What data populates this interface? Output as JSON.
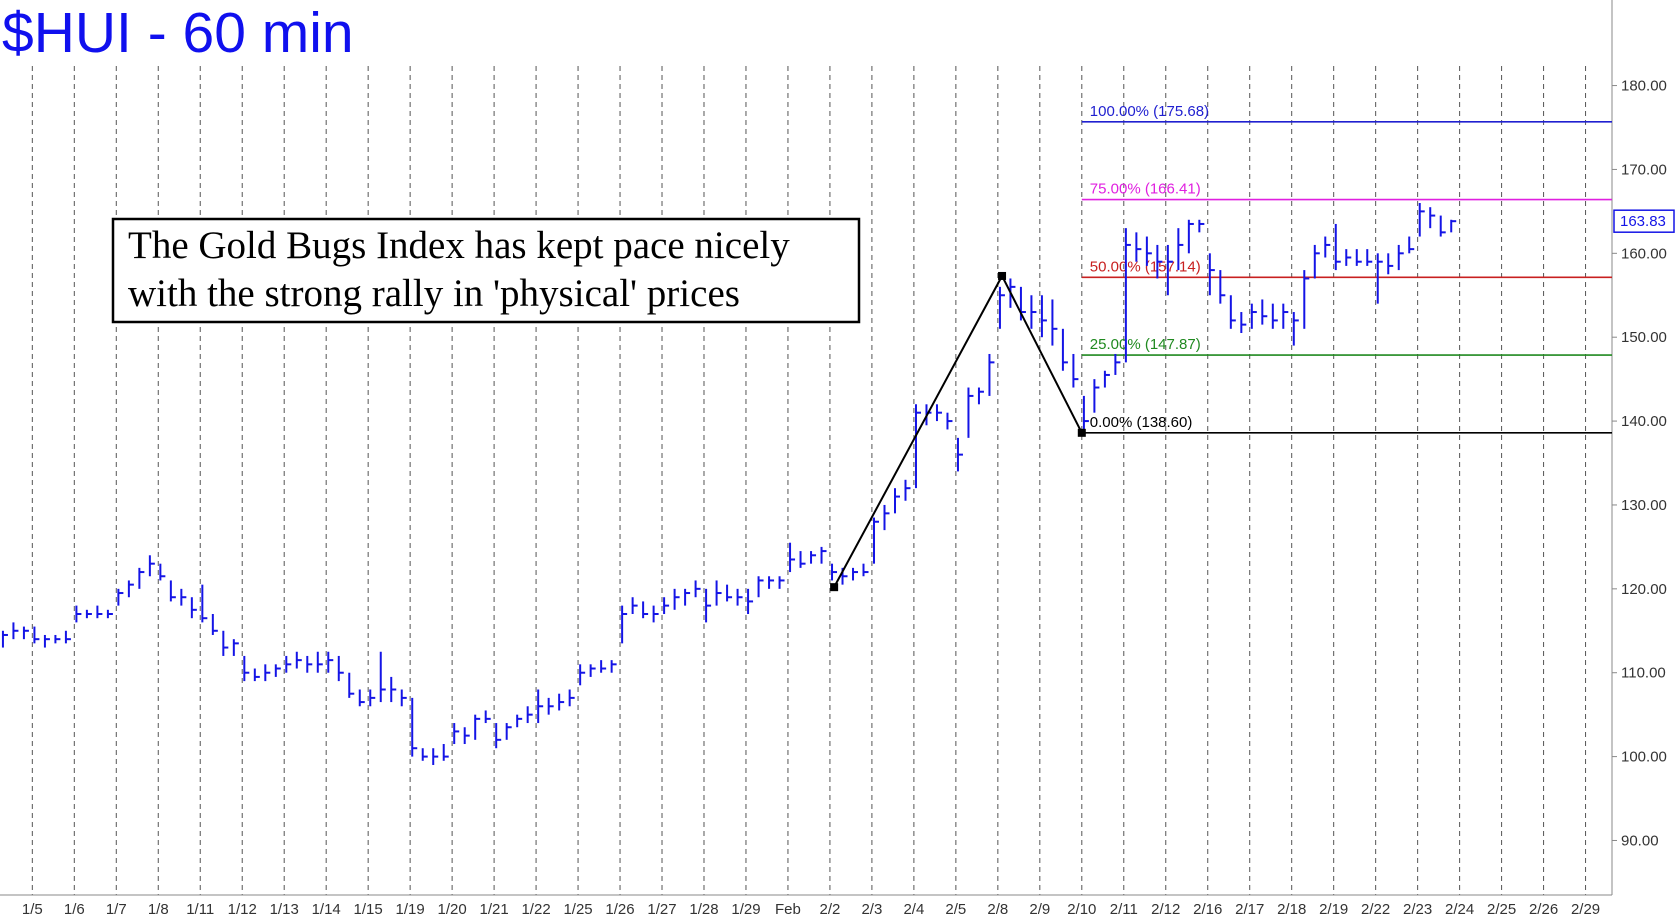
{
  "chart_data": {
    "type": "ohlc",
    "title": "$HUI - 60 min",
    "annotation": [
      "The Gold Bugs Index has kept pace nicely",
      "with the strong rally in 'physical' prices"
    ],
    "color": "#1414e6",
    "grid": true,
    "xlim": [
      -0.77,
      37.63
    ],
    "ylim": [
      83.5,
      190.2
    ],
    "xticks": [
      {
        "value": 0,
        "label": "1/5"
      },
      {
        "value": 1,
        "label": "1/6"
      },
      {
        "value": 2,
        "label": "1/7"
      },
      {
        "value": 3,
        "label": "1/8"
      },
      {
        "value": 4,
        "label": "1/11"
      },
      {
        "value": 5,
        "label": "1/12"
      },
      {
        "value": 6,
        "label": "1/13"
      },
      {
        "value": 7,
        "label": "1/14"
      },
      {
        "value": 8,
        "label": "1/15"
      },
      {
        "value": 9,
        "label": "1/19"
      },
      {
        "value": 10,
        "label": "1/20"
      },
      {
        "value": 11,
        "label": "1/21"
      },
      {
        "value": 12,
        "label": "1/22"
      },
      {
        "value": 13,
        "label": "1/25"
      },
      {
        "value": 14,
        "label": "1/26"
      },
      {
        "value": 15,
        "label": "1/27"
      },
      {
        "value": 16,
        "label": "1/28"
      },
      {
        "value": 17,
        "label": "1/29"
      },
      {
        "value": 18,
        "label": "Feb"
      },
      {
        "value": 19,
        "label": "2/2"
      },
      {
        "value": 20,
        "label": "2/3"
      },
      {
        "value": 21,
        "label": "2/4"
      },
      {
        "value": 22,
        "label": "2/5"
      },
      {
        "value": 23,
        "label": "2/8"
      },
      {
        "value": 24,
        "label": "2/9"
      },
      {
        "value": 25,
        "label": "2/10"
      },
      {
        "value": 26,
        "label": "2/11"
      },
      {
        "value": 27,
        "label": "2/12"
      },
      {
        "value": 28,
        "label": "2/16"
      },
      {
        "value": 29,
        "label": "2/17"
      },
      {
        "value": 30,
        "label": "2/18"
      },
      {
        "value": 31,
        "label": "2/19"
      },
      {
        "value": 32,
        "label": "2/22"
      },
      {
        "value": 33,
        "label": "2/23"
      },
      {
        "value": 34,
        "label": "2/24"
      },
      {
        "value": 35,
        "label": "2/25"
      },
      {
        "value": 36,
        "label": "2/26"
      },
      {
        "value": 37,
        "label": "2/29"
      }
    ],
    "yticks": [
      {
        "value": 90,
        "label": "90.00"
      },
      {
        "value": 100,
        "label": "100.00"
      },
      {
        "value": 110,
        "label": "110.00"
      },
      {
        "value": 120,
        "label": "120.00"
      },
      {
        "value": 130,
        "label": "130.00"
      },
      {
        "value": 140,
        "label": "140.00"
      },
      {
        "value": 150,
        "label": "150.00"
      },
      {
        "value": 160,
        "label": "160.00"
      },
      {
        "value": 170,
        "label": "170.00"
      },
      {
        "value": 180,
        "label": "180.00"
      }
    ],
    "x": [
      -0.7,
      -0.45,
      -0.2,
      0.05,
      0.3,
      0.55,
      0.8,
      1.05,
      1.3,
      1.55,
      1.8,
      2.05,
      2.3,
      2.55,
      2.8,
      3.05,
      3.3,
      3.55,
      3.8,
      4.05,
      4.3,
      4.55,
      4.8,
      5.05,
      5.3,
      5.55,
      5.8,
      6.05,
      6.3,
      6.55,
      6.8,
      7.05,
      7.3,
      7.55,
      7.8,
      8.05,
      8.3,
      8.55,
      8.8,
      9.05,
      9.3,
      9.55,
      9.8,
      10.05,
      10.3,
      10.55,
      10.8,
      11.05,
      11.3,
      11.55,
      11.8,
      12.05,
      12.3,
      12.55,
      12.8,
      13.05,
      13.3,
      13.55,
      13.8,
      14.05,
      14.3,
      14.55,
      14.8,
      15.05,
      15.3,
      15.55,
      15.8,
      16.05,
      16.3,
      16.55,
      16.8,
      17.05,
      17.3,
      17.55,
      17.8,
      18.05,
      18.3,
      18.55,
      18.8,
      19.05,
      19.3,
      19.55,
      19.8,
      20.05,
      20.3,
      20.55,
      20.8,
      21.05,
      21.3,
      21.55,
      21.8,
      22.05,
      22.3,
      22.55,
      22.8,
      23.05,
      23.3,
      23.55,
      23.8,
      24.05,
      24.3,
      24.55,
      24.8,
      25.05,
      25.3,
      25.55,
      25.8,
      26.05,
      26.3,
      26.55,
      26.8,
      27.05,
      27.3,
      27.55,
      27.8,
      28.05,
      28.3,
      28.55,
      28.8,
      29.05,
      29.3,
      29.55,
      29.8,
      30.05,
      30.3,
      30.55,
      30.8,
      31.05,
      31.3,
      31.55,
      31.8,
      32.05,
      32.3,
      32.55,
      32.8,
      33.05,
      33.3,
      33.55,
      33.8
    ],
    "high": [
      115,
      116,
      115.5,
      115.5,
      114.5,
      114.5,
      115,
      118,
      117.5,
      118,
      117.5,
      120,
      121,
      122.5,
      124,
      123,
      121,
      120,
      119,
      120.5,
      117,
      115,
      114,
      112,
      110.5,
      111,
      111,
      112,
      112.5,
      112,
      112.5,
      112.5,
      112,
      110,
      108,
      108,
      112.5,
      109.5,
      108,
      107,
      101,
      101,
      101.5,
      104,
      103.5,
      105,
      105.5,
      104,
      104,
      105,
      106,
      108,
      107,
      107.5,
      108,
      111,
      111,
      111.5,
      111.5,
      118,
      119,
      118.5,
      118,
      119,
      120,
      120,
      121,
      120,
      121,
      120.5,
      120,
      120,
      121.5,
      121.5,
      121.5,
      125.5,
      124.5,
      124.5,
      125,
      123,
      122.5,
      122.5,
      123,
      128.5,
      130,
      132,
      133,
      142,
      142,
      142,
      141,
      138,
      144,
      144,
      148,
      156,
      157,
      156,
      155,
      155,
      154.5,
      151,
      148,
      143,
      145,
      146,
      148,
      163,
      162.5,
      162,
      161,
      161,
      163,
      164,
      164,
      160,
      158,
      155,
      153,
      154,
      154.5,
      154,
      154,
      153,
      158,
      161,
      162,
      163.5,
      160.5,
      160.5,
      160.5,
      160,
      160,
      161,
      162,
      166,
      165.5,
      164.5,
      164
    ],
    "low": [
      113,
      114,
      114,
      113.5,
      113,
      113.5,
      113.5,
      116,
      116.5,
      116.5,
      116.5,
      118,
      119,
      120,
      121.5,
      121,
      118.5,
      118,
      116.5,
      116,
      114.5,
      112,
      112,
      109,
      109,
      109,
      109.5,
      110,
      110.5,
      110,
      110,
      110,
      109,
      107,
      106,
      106,
      106.5,
      106.5,
      106,
      100,
      99.5,
      99,
      99.5,
      101.5,
      101.5,
      102,
      104,
      101,
      102,
      103.5,
      104,
      104,
      105,
      105.5,
      106,
      108.5,
      109.5,
      110,
      110,
      113.5,
      117,
      116.5,
      116,
      117,
      117.5,
      118,
      119,
      116,
      118,
      118.5,
      118,
      117,
      119,
      120,
      120,
      122,
      122.5,
      123,
      123,
      121,
      120.5,
      121,
      121.5,
      123,
      127,
      129,
      130.5,
      132,
      139.5,
      140,
      139,
      134,
      138,
      142,
      143,
      151,
      153.5,
      152,
      151,
      150,
      149,
      146,
      144,
      139,
      141,
      144,
      145.5,
      147,
      159,
      158.5,
      157,
      155,
      158,
      160,
      162.5,
      155,
      154,
      151,
      150.5,
      151,
      151.5,
      151,
      151,
      149,
      151,
      157,
      159.5,
      158,
      158.5,
      158.5,
      158.5,
      154,
      157.5,
      158,
      160,
      162,
      163,
      162,
      162.5
    ],
    "close": [
      114.5,
      115,
      115,
      114,
      114,
      114,
      114,
      117,
      117,
      117,
      117,
      119.5,
      120.5,
      122,
      123,
      121.5,
      119,
      119,
      117.5,
      116.5,
      115,
      113,
      113.5,
      110,
      109.5,
      110,
      110.5,
      111,
      111.5,
      111,
      111,
      111.5,
      110,
      107.5,
      106.5,
      107,
      108,
      108,
      107,
      101,
      100,
      100,
      100,
      103,
      102.5,
      104.5,
      104.5,
      102,
      103.5,
      104.5,
      105,
      106,
      106,
      106.5,
      107,
      110,
      110.5,
      110.5,
      111,
      117,
      118,
      117,
      117,
      118,
      119,
      119.5,
      120,
      118,
      119.5,
      119,
      119,
      118.5,
      121,
      121,
      121,
      123.5,
      123,
      124,
      124.5,
      122,
      121.5,
      122,
      122,
      128,
      129,
      131,
      132,
      141,
      141,
      141,
      140,
      136,
      143,
      143.5,
      147,
      155,
      156,
      153,
      153,
      152,
      151,
      147,
      145,
      140,
      144,
      145.5,
      147,
      161,
      160.5,
      160,
      159,
      159,
      161,
      163.5,
      163.5,
      158,
      155,
      152,
      151.5,
      153,
      152.5,
      152,
      153,
      152,
      157,
      160,
      161,
      159,
      159.5,
      159,
      159,
      159,
      158.5,
      160,
      160.5,
      165,
      164.5,
      162.5,
      163.83
    ],
    "swing": {
      "x": [
        19.1,
        23.1,
        25.0
      ],
      "values": [
        120.2,
        157.3,
        138.6
      ]
    },
    "fib_start": 25.0,
    "fib_levels": [
      {
        "label": "100.00% (175.68)",
        "value": 175.68,
        "color": "#2020d0"
      },
      {
        "label": "75.00% (166.41)",
        "value": 166.41,
        "color": "#e020e0"
      },
      {
        "label": "50.00% (157.14)",
        "value": 157.14,
        "color": "#c82020"
      },
      {
        "label": "25.00% (147.87)",
        "value": 147.87,
        "color": "#208a20"
      },
      {
        "label": "0.00% (138.60)",
        "value": 138.6,
        "color": "#000000"
      }
    ],
    "last_price": 163.83
  }
}
